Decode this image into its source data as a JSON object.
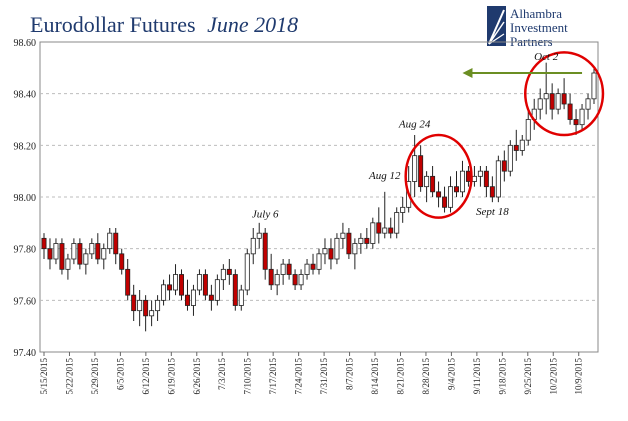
{
  "chart_data": {
    "type": "candlestick",
    "title": "Eurodollar Futures",
    "title_italic": "June 2018",
    "xlabel": "",
    "ylabel": "",
    "ylim": [
      97.4,
      98.6
    ],
    "yticks": [
      97.4,
      97.6,
      97.8,
      98.0,
      98.2,
      98.4,
      98.6
    ],
    "grid": true,
    "x_ticks": [
      "5/15/2015",
      "5/22/2015",
      "5/29/2015",
      "6/5/2015",
      "6/12/2015",
      "6/19/2015",
      "6/26/2015",
      "7/3/2015",
      "7/10/2015",
      "7/17/2015",
      "7/24/2015",
      "7/31/2015",
      "8/7/2015",
      "8/14/2015",
      "8/21/2015",
      "8/28/2015",
      "9/4/2015",
      "9/11/2015",
      "9/18/2015",
      "9/25/2015",
      "10/2/2015",
      "10/9/2015"
    ],
    "colors": {
      "up": "#ffffff",
      "down": "#c00000",
      "outline": "#222222",
      "grid": "#bdbdbd",
      "circle": "#e00000",
      "arrow": "#6b8e23",
      "title": "#1f3a6e"
    },
    "candles": [
      [
        97.84,
        97.86,
        97.76,
        97.8
      ],
      [
        97.8,
        97.84,
        97.72,
        97.76
      ],
      [
        97.76,
        97.84,
        97.74,
        97.82
      ],
      [
        97.82,
        97.84,
        97.7,
        97.72
      ],
      [
        97.72,
        97.78,
        97.68,
        97.76
      ],
      [
        97.76,
        97.84,
        97.74,
        97.82
      ],
      [
        97.82,
        97.84,
        97.72,
        97.74
      ],
      [
        97.74,
        97.8,
        97.7,
        97.78
      ],
      [
        97.78,
        97.84,
        97.76,
        97.82
      ],
      [
        97.82,
        97.86,
        97.74,
        97.76
      ],
      [
        97.76,
        97.82,
        97.72,
        97.8
      ],
      [
        97.8,
        97.88,
        97.78,
        97.86
      ],
      [
        97.86,
        97.88,
        97.74,
        97.78
      ],
      [
        97.78,
        97.8,
        97.7,
        97.72
      ],
      [
        97.72,
        97.76,
        97.6,
        97.62
      ],
      [
        97.62,
        97.66,
        97.52,
        97.56
      ],
      [
        97.56,
        97.64,
        97.5,
        97.6
      ],
      [
        97.6,
        97.62,
        97.48,
        97.54
      ],
      [
        97.54,
        97.6,
        97.5,
        97.56
      ],
      [
        97.56,
        97.62,
        97.52,
        97.6
      ],
      [
        97.6,
        97.68,
        97.58,
        97.66
      ],
      [
        97.66,
        97.7,
        97.6,
        97.64
      ],
      [
        97.64,
        97.74,
        97.62,
        97.7
      ],
      [
        97.7,
        97.72,
        97.6,
        97.62
      ],
      [
        97.62,
        97.68,
        97.56,
        97.58
      ],
      [
        97.58,
        97.66,
        97.54,
        97.64
      ],
      [
        97.64,
        97.72,
        97.62,
        97.7
      ],
      [
        97.7,
        97.72,
        97.6,
        97.62
      ],
      [
        97.62,
        97.66,
        97.56,
        97.6
      ],
      [
        97.6,
        97.7,
        97.58,
        97.68
      ],
      [
        97.68,
        97.74,
        97.64,
        97.72
      ],
      [
        97.72,
        97.76,
        97.66,
        97.7
      ],
      [
        97.7,
        97.72,
        97.56,
        97.58
      ],
      [
        97.58,
        97.66,
        97.56,
        97.64
      ],
      [
        97.64,
        97.8,
        97.62,
        97.78
      ],
      [
        97.78,
        97.88,
        97.74,
        97.84
      ],
      [
        97.84,
        97.9,
        97.8,
        97.86
      ],
      [
        97.86,
        97.88,
        97.68,
        97.72
      ],
      [
        97.72,
        97.78,
        97.64,
        97.66
      ],
      [
        97.66,
        97.72,
        97.62,
        97.7
      ],
      [
        97.7,
        97.76,
        97.66,
        97.74
      ],
      [
        97.74,
        97.76,
        97.68,
        97.7
      ],
      [
        97.7,
        97.72,
        97.64,
        97.66
      ],
      [
        97.66,
        97.72,
        97.64,
        97.7
      ],
      [
        97.7,
        97.76,
        97.68,
        97.74
      ],
      [
        97.74,
        97.78,
        97.7,
        97.72
      ],
      [
        97.72,
        97.8,
        97.7,
        97.78
      ],
      [
        97.78,
        97.84,
        97.74,
        97.8
      ],
      [
        97.8,
        97.84,
        97.72,
        97.76
      ],
      [
        97.76,
        97.86,
        97.74,
        97.84
      ],
      [
        97.84,
        97.9,
        97.8,
        97.86
      ],
      [
        97.86,
        97.88,
        97.76,
        97.78
      ],
      [
        97.78,
        97.84,
        97.72,
        97.82
      ],
      [
        97.82,
        97.86,
        97.78,
        97.84
      ],
      [
        97.84,
        97.88,
        97.8,
        97.82
      ],
      [
        97.82,
        97.92,
        97.8,
        97.9
      ],
      [
        97.9,
        97.96,
        97.82,
        97.86
      ],
      [
        97.86,
        98.02,
        97.84,
        97.88
      ],
      [
        97.88,
        97.92,
        97.84,
        97.86
      ],
      [
        97.86,
        97.96,
        97.84,
        97.94
      ],
      [
        97.94,
        98.0,
        97.9,
        97.96
      ],
      [
        97.96,
        98.12,
        97.94,
        98.06
      ],
      [
        98.06,
        98.24,
        98.0,
        98.16
      ],
      [
        98.16,
        98.2,
        98.02,
        98.04
      ],
      [
        98.04,
        98.1,
        97.98,
        98.08
      ],
      [
        98.08,
        98.12,
        98.0,
        98.02
      ],
      [
        98.02,
        98.06,
        97.96,
        98.0
      ],
      [
        98.0,
        98.04,
        97.94,
        97.96
      ],
      [
        97.96,
        98.08,
        97.94,
        98.04
      ],
      [
        98.04,
        98.1,
        98.0,
        98.02
      ],
      [
        98.02,
        98.14,
        98.0,
        98.1
      ],
      [
        98.1,
        98.12,
        98.04,
        98.06
      ],
      [
        98.06,
        98.12,
        98.04,
        98.08
      ],
      [
        98.08,
        98.12,
        98.04,
        98.1
      ],
      [
        98.1,
        98.12,
        98.0,
        98.04
      ],
      [
        98.04,
        98.08,
        97.98,
        98.0
      ],
      [
        98.0,
        98.16,
        97.98,
        98.14
      ],
      [
        98.14,
        98.18,
        98.06,
        98.1
      ],
      [
        98.1,
        98.22,
        98.08,
        98.2
      ],
      [
        98.2,
        98.26,
        98.14,
        98.18
      ],
      [
        98.18,
        98.24,
        98.16,
        98.22
      ],
      [
        98.22,
        98.34,
        98.2,
        98.3
      ],
      [
        98.3,
        98.38,
        98.26,
        98.34
      ],
      [
        98.34,
        98.42,
        98.3,
        98.38
      ],
      [
        98.38,
        98.52,
        98.32,
        98.4
      ],
      [
        98.4,
        98.44,
        98.3,
        98.34
      ],
      [
        98.34,
        98.42,
        98.32,
        98.4
      ],
      [
        98.4,
        98.46,
        98.34,
        98.36
      ],
      [
        98.36,
        98.4,
        98.28,
        98.3
      ],
      [
        98.3,
        98.34,
        98.24,
        98.28
      ],
      [
        98.28,
        98.36,
        98.26,
        98.34
      ],
      [
        98.34,
        98.4,
        98.3,
        98.38
      ],
      [
        98.38,
        98.5,
        98.36,
        98.48
      ]
    ],
    "annotations": [
      {
        "text": "July 6",
        "x_index": 37,
        "y": 97.92
      },
      {
        "text": "Aug 12",
        "x_index": 57,
        "y": 98.07
      },
      {
        "text": "Aug 24",
        "x_index": 62,
        "y": 98.27
      },
      {
        "text": "Sept 18",
        "x_index": 75,
        "y": 97.93
      },
      {
        "text": "Oct 2",
        "x_index": 84,
        "y": 98.53
      }
    ],
    "circles": [
      {
        "x_index_center": 66,
        "y_center": 98.08,
        "x_index_radius": 5.5,
        "y_radius": 0.16
      },
      {
        "x_index_center": 87,
        "y_center": 98.4,
        "x_index_radius": 6.5,
        "y_radius": 0.16
      }
    ],
    "arrow": {
      "y": 98.48,
      "from_index": 90,
      "to_index": 70
    }
  },
  "logo": {
    "line1": "Alhambra",
    "line2": "Investment",
    "line3": "Partners"
  }
}
